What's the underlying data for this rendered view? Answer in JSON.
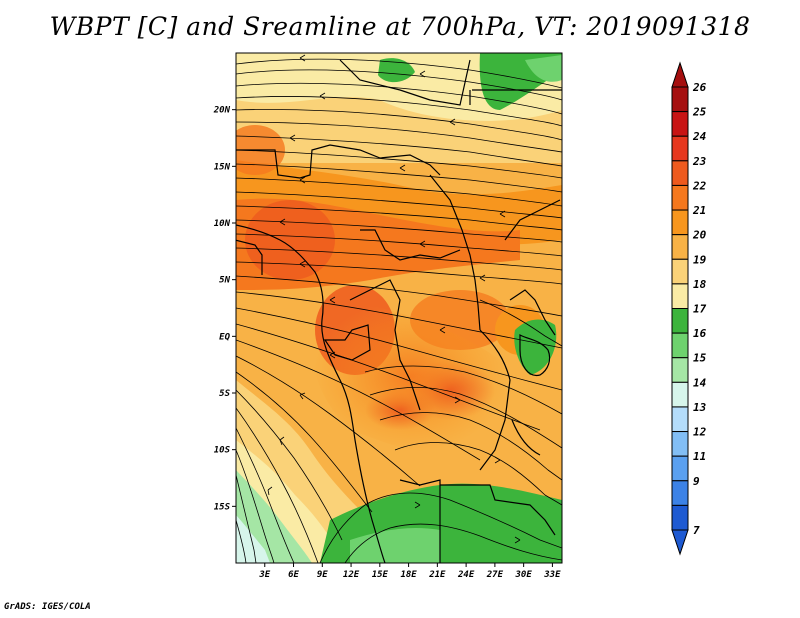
{
  "title": "WBPT [C] and Sreamline at 700hPa, VT: 2019091318",
  "credit": "GrADS: IGES/COLA",
  "map": {
    "lat_labels": [
      "20N",
      "15N",
      "10N",
      "5N",
      "EQ",
      "5S",
      "10S",
      "15S"
    ],
    "lon_labels": [
      "3E",
      "6E",
      "9E",
      "12E",
      "15E",
      "18E",
      "21E",
      "24E",
      "27E",
      "30E",
      "33E"
    ],
    "lat_values": [
      20,
      15,
      10,
      5,
      0,
      -5,
      -10,
      -15
    ],
    "lon_values": [
      3,
      6,
      9,
      12,
      15,
      18,
      21,
      24,
      27,
      30,
      33
    ],
    "lon_range": [
      0,
      34
    ],
    "lat_range": [
      -20,
      25
    ]
  },
  "colorbar": {
    "labels": [
      "26",
      "25",
      "24",
      "23",
      "22",
      "21",
      "20",
      "19",
      "18",
      "17",
      "16",
      "15",
      "14",
      "13",
      "12",
      "11",
      "9",
      "7"
    ],
    "colors": [
      "#a50f0f",
      "#c81414",
      "#e6371e",
      "#ee5a1e",
      "#f5781e",
      "#f7961e",
      "#f8b246",
      "#fad278",
      "#faeba5",
      "#3cb43c",
      "#6ed26e",
      "#a5e6a5",
      "#d7f5eb",
      "#b4dcfa",
      "#82bef5",
      "#5aa0f0",
      "#3c82e6",
      "#1e5ad2"
    ]
  }
}
